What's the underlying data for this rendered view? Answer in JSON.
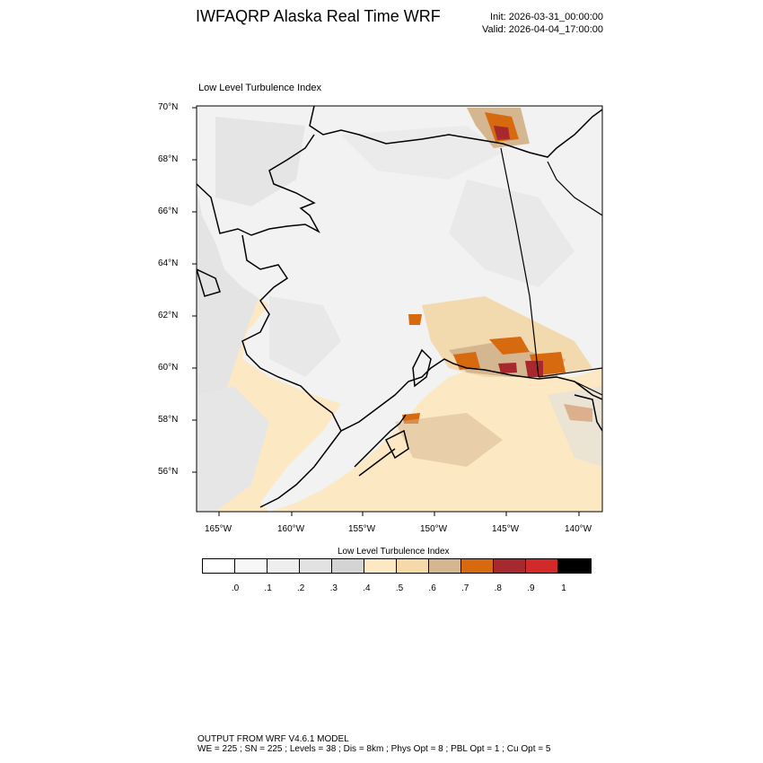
{
  "header": {
    "title": "IWFAQRP Alaska Real Time WRF",
    "init": "Init: 2026-03-31_00:00:00",
    "valid": "Valid: 2026-04-04_17:00:00"
  },
  "plot": {
    "title": "Low Level Turbulence Index",
    "lat_labels": [
      "70°N",
      "68°N",
      "66°N",
      "64°N",
      "62°N",
      "60°N",
      "58°N",
      "56°N"
    ],
    "lon_labels": [
      "165°W",
      "160°W",
      "155°W",
      "150°W",
      "145°W",
      "140°W"
    ],
    "colors": {
      "land_base": "#f4f4f4",
      "ocean_base": "#fde8c4",
      "coast": "#000000"
    }
  },
  "colorbar": {
    "title": "Low Level Turbulence Index",
    "colors": [
      "#ffffff",
      "#f7f7f7",
      "#eeeeee",
      "#e2e2e2",
      "#d4d4d4",
      "#fde8c4",
      "#f5d9a8",
      "#d4b690",
      "#d7690f",
      "#a8292d",
      "#d22a2a",
      "#000000"
    ],
    "ticks": [
      ".0",
      ".1",
      ".2",
      ".3",
      ".4",
      ".5",
      ".6",
      ".7",
      ".8",
      ".9",
      "1"
    ]
  },
  "footer": {
    "line1": "OUTPUT FROM WRF V4.6.1 MODEL",
    "line2": "WE = 225 ; SN = 225 ; Levels = 38 ; Dis = 8km ; Phys Opt = 8 ; PBL Opt = 1 ; Cu Opt = 5"
  }
}
